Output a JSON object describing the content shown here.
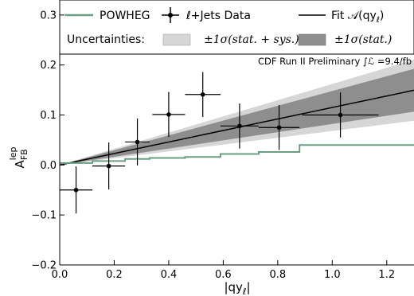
{
  "chart_data": {
    "type": "line",
    "xlabel": "|qy",
    "xlabel_sub": "ℓ",
    "ylabel": "A",
    "ylabel_sub": "FB",
    "ylabel_sup": "lep",
    "xlim": [
      0.0,
      1.3
    ],
    "ylim": [
      -0.2,
      0.33
    ],
    "xticks": [
      0.0,
      0.2,
      0.4,
      0.6,
      0.8,
      1.0,
      1.2
    ],
    "xtick_labels": [
      "0.0",
      "0.2",
      "0.4",
      "0.6",
      "0.8",
      "1.0",
      "1.2"
    ],
    "yticks": [
      -0.2,
      -0.1,
      0.0,
      0.1,
      0.2,
      0.3
    ],
    "ytick_labels": [
      "−0.2",
      "−0.1",
      "0.0",
      "0.1",
      "0.2",
      "0.3"
    ],
    "annotation": "CDF Run II Preliminary ∫ℒ =9.4/fb",
    "legend": {
      "powheg": "POWHEG",
      "data": "ℓ+Jets Data",
      "fit": "Fit 𝒜(qy",
      "fit_sub": "ℓ",
      "fit_close": ")",
      "uncertainties": "Uncertainties:",
      "band_sys": "±1σ(stat. + sys.)",
      "band_stat": "±1σ(stat.)"
    },
    "colors": {
      "powheg": "#6a9e82",
      "band_sys": "#d6d6d6",
      "band_stat": "#8e8e8e",
      "fit": "#000000",
      "data": "#000000"
    },
    "fit": {
      "slope": 0.115
    },
    "band_stat_halfwidth_slope": 0.033,
    "band_sys_halfwidth_slope": 0.047,
    "data_points": [
      {
        "x": 0.06,
        "y": -0.05,
        "xerr_lo": 0.06,
        "xerr_hi": 0.06,
        "yerr": 0.047
      },
      {
        "x": 0.18,
        "y": -0.002,
        "xerr_lo": 0.06,
        "xerr_hi": 0.06,
        "yerr": 0.047
      },
      {
        "x": 0.285,
        "y": 0.046,
        "xerr_lo": 0.045,
        "xerr_hi": 0.045,
        "yerr": 0.047
      },
      {
        "x": 0.4,
        "y": 0.101,
        "xerr_lo": 0.06,
        "xerr_hi": 0.06,
        "yerr": 0.045
      },
      {
        "x": 0.525,
        "y": 0.141,
        "xerr_lo": 0.065,
        "xerr_hi": 0.065,
        "yerr": 0.045
      },
      {
        "x": 0.66,
        "y": 0.078,
        "xerr_lo": 0.07,
        "xerr_hi": 0.07,
        "yerr": 0.045
      },
      {
        "x": 0.805,
        "y": 0.075,
        "xerr_lo": 0.075,
        "xerr_hi": 0.075,
        "yerr": 0.045
      },
      {
        "x": 1.03,
        "y": 0.1,
        "xerr_lo": 0.14,
        "xerr_hi": 0.14,
        "yerr": 0.045
      }
    ],
    "powheg_steps": [
      {
        "x0": 0.0,
        "x1": 0.12,
        "y": 0.004
      },
      {
        "x0": 0.12,
        "x1": 0.24,
        "y": 0.008
      },
      {
        "x0": 0.24,
        "x1": 0.33,
        "y": 0.012
      },
      {
        "x0": 0.33,
        "x1": 0.46,
        "y": 0.014
      },
      {
        "x0": 0.46,
        "x1": 0.59,
        "y": 0.016
      },
      {
        "x0": 0.59,
        "x1": 0.73,
        "y": 0.022
      },
      {
        "x0": 0.73,
        "x1": 0.88,
        "y": 0.026
      },
      {
        "x0": 0.88,
        "x1": 1.3,
        "y": 0.04
      }
    ],
    "grid": false,
    "legend_placement": "top"
  }
}
